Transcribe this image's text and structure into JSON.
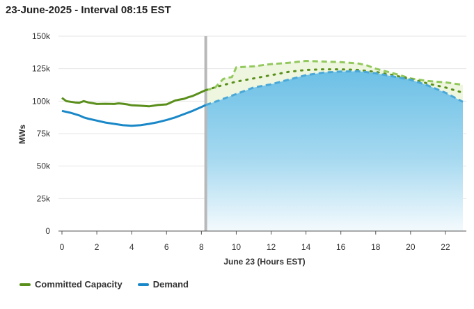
{
  "header": {
    "title": "23-June-2025 - Interval 08:15 EST"
  },
  "colors": {
    "committed": "#5a8f1c",
    "committed_forecast": "#92c85c",
    "demand": "#1a88c8",
    "demand_forecast": "#4aa8d8",
    "now_line": "#b8b8b8",
    "grid": "#e6e6e6"
  },
  "legend": [
    {
      "label": "Committed Capacity",
      "color": "#5a8f1c"
    },
    {
      "label": "Demand",
      "color": "#1a88c8"
    }
  ],
  "chart_data": {
    "type": "line",
    "title": "23-June-2025 - Interval 08:15 EST",
    "xlabel": "June 23 (Hours EST)",
    "ylabel": "MWs",
    "xlim": [
      -0.2,
      23.2
    ],
    "ylim": [
      0,
      150000
    ],
    "xticks": [
      0,
      2,
      4,
      6,
      8,
      10,
      12,
      14,
      16,
      18,
      20,
      22
    ],
    "yticks": [
      0,
      25000,
      50000,
      75000,
      100000,
      125000,
      150000
    ],
    "ytick_labels": [
      "0",
      "25k",
      "50k",
      "75k",
      "100k",
      "125k",
      "150k"
    ],
    "grid": "horizontal",
    "legend_position": "bottom-left",
    "current_interval_hour": 8.25,
    "series": [
      {
        "name": "Committed Capacity",
        "kind": "actual",
        "x": [
          0,
          0.25,
          0.5,
          0.75,
          1,
          1.25,
          1.5,
          1.75,
          2,
          2.5,
          3,
          3.25,
          3.5,
          3.75,
          4,
          4.5,
          5,
          5.5,
          6,
          6.25,
          6.5,
          6.75,
          7,
          7.25,
          7.5,
          7.75,
          8,
          8.25
        ],
        "values": [
          102500,
          100000,
          99500,
          99000,
          98800,
          100000,
          99000,
          98500,
          97800,
          98000,
          97800,
          98300,
          98000,
          97500,
          96800,
          96500,
          96000,
          97000,
          97500,
          99000,
          100500,
          101200,
          101800,
          103000,
          104000,
          105500,
          107000,
          108500
        ]
      },
      {
        "name": "Demand",
        "kind": "actual",
        "x": [
          0,
          0.5,
          1,
          1.25,
          1.5,
          2,
          2.5,
          3,
          3.5,
          4,
          4.5,
          5,
          5.5,
          6,
          6.5,
          7,
          7.5,
          8,
          8.25
        ],
        "values": [
          92500,
          91000,
          89000,
          87500,
          86500,
          85000,
          83500,
          82500,
          81500,
          81000,
          81500,
          82500,
          83800,
          85500,
          87500,
          90000,
          92500,
          95500,
          97000
        ]
      },
      {
        "name": "Committed Capacity Forecast",
        "kind": "forecast-dashed",
        "x": [
          8.25,
          8.75,
          9.25,
          9.5,
          9.75,
          10,
          11,
          12,
          13,
          14,
          15,
          16,
          17,
          17.5,
          18,
          19,
          20,
          21,
          22,
          23
        ],
        "values": [
          108500,
          110000,
          117000,
          118000,
          118500,
          126000,
          126800,
          128500,
          129500,
          131000,
          130500,
          130000,
          129000,
          127500,
          125000,
          121500,
          117500,
          115500,
          114500,
          112500
        ]
      },
      {
        "name": "Committed Capacity Projection",
        "kind": "forecast-dotted",
        "x": [
          8.25,
          9,
          10,
          11,
          12,
          13,
          14,
          15,
          16,
          17,
          18,
          19,
          20,
          21,
          22,
          23
        ],
        "values": [
          108500,
          111500,
          115000,
          117500,
          120000,
          122500,
          124000,
          124500,
          124500,
          124000,
          122500,
          120000,
          117000,
          113500,
          110500,
          106500
        ]
      },
      {
        "name": "Demand Forecast",
        "kind": "forecast-dashed",
        "x": [
          8.25,
          9,
          10,
          11,
          12,
          13,
          14,
          15,
          16,
          17,
          18,
          19,
          20,
          21,
          22,
          23
        ],
        "values": [
          97000,
          100500,
          105500,
          110500,
          113000,
          116500,
          120000,
          122000,
          122800,
          123000,
          121500,
          119000,
          116500,
          112000,
          106500,
          99500
        ]
      }
    ]
  }
}
